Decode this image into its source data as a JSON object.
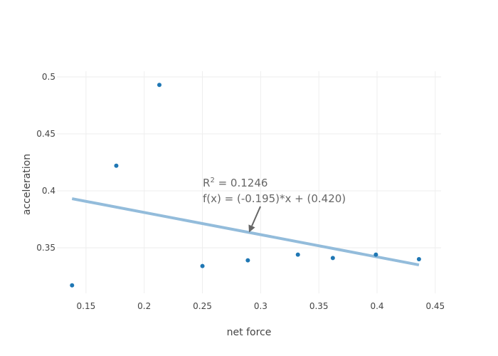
{
  "chart_data": {
    "type": "scatter",
    "xlabel": "net force",
    "ylabel": "acceleration",
    "xlim": [
      0.125,
      0.455
    ],
    "ylim": [
      0.31,
      0.505
    ],
    "x_ticks": [
      0.15,
      0.2,
      0.25,
      0.3,
      0.35,
      0.4,
      0.45
    ],
    "x_tick_labels": [
      "0.15",
      "0.2",
      "0.25",
      "0.3",
      "0.35",
      "0.4",
      "0.45"
    ],
    "y_ticks": [
      0.35,
      0.4,
      0.45,
      0.5
    ],
    "y_tick_labels": [
      "0.35",
      "0.4",
      "0.45",
      "0.5"
    ],
    "grid": true,
    "series": [
      {
        "x": [
          0.138,
          0.176,
          0.213,
          0.25,
          0.289,
          0.332,
          0.362,
          0.399,
          0.436
        ],
        "y": [
          0.317,
          0.422,
          0.493,
          0.334,
          0.339,
          0.344,
          0.341,
          0.344,
          0.34
        ],
        "color": "#1f77b4"
      }
    ],
    "fit_line": {
      "slope": -0.195,
      "intercept": 0.42,
      "x_range": [
        0.138,
        0.436
      ],
      "color": "#93bcdb"
    },
    "annotation": {
      "r2_prefix": "R",
      "r2_sup": "2",
      "r2_value": " = 0.1246",
      "equation": "f(x) = (-0.195)*x + (0.420)",
      "arrow_x": 0.29,
      "arrow_y": 0.3634,
      "color": "#666666"
    }
  }
}
